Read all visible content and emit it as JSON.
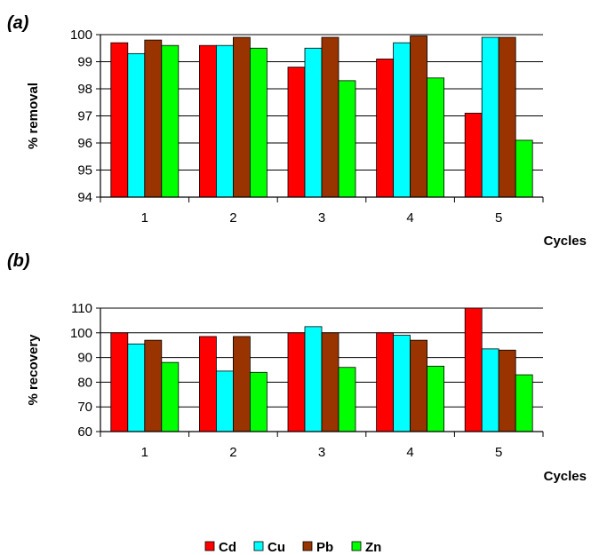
{
  "chart_data": [
    {
      "type": "bar",
      "panel_label": "(a)",
      "title": "",
      "xlabel": "Cycles",
      "ylabel": "% removal",
      "categories": [
        "1",
        "2",
        "3",
        "4",
        "5"
      ],
      "ylim": [
        94,
        100
      ],
      "yticks": [
        "94",
        "95",
        "96",
        "97",
        "98",
        "99",
        "100"
      ],
      "grid": true,
      "series": [
        {
          "name": "Cd",
          "values": [
            99.7,
            99.6,
            98.8,
            99.1,
            97.1
          ]
        },
        {
          "name": "Cu",
          "values": [
            99.3,
            99.6,
            99.5,
            99.7,
            99.9
          ]
        },
        {
          "name": "Pb",
          "values": [
            99.8,
            99.9,
            99.9,
            99.95,
            99.9
          ]
        },
        {
          "name": "Zn",
          "values": [
            99.6,
            99.5,
            98.3,
            98.4,
            96.1
          ]
        }
      ]
    },
    {
      "type": "bar",
      "panel_label": "(b)",
      "title": "",
      "xlabel": "Cycles",
      "ylabel": "% recovery",
      "categories": [
        "1",
        "2",
        "3",
        "4",
        "5"
      ],
      "ylim": [
        60,
        110
      ],
      "yticks": [
        "60",
        "70",
        "80",
        "90",
        "100",
        "110"
      ],
      "grid": true,
      "series": [
        {
          "name": "Cd",
          "values": [
            100,
            98.5,
            100,
            100,
            112
          ]
        },
        {
          "name": "Cu",
          "values": [
            95.5,
            84.5,
            102.5,
            99,
            93.5
          ]
        },
        {
          "name": "Pb",
          "values": [
            97,
            98.5,
            100,
            97,
            93
          ]
        },
        {
          "name": "Zn",
          "values": [
            88,
            84,
            86,
            86.5,
            83
          ]
        }
      ]
    }
  ],
  "legend": {
    "placement": "bottom-center",
    "items": [
      {
        "name": "Cd",
        "color": "#ff0000"
      },
      {
        "name": "Cu",
        "color": "#00ffff"
      },
      {
        "name": "Pb",
        "color": "#993300"
      },
      {
        "name": "Zn",
        "color": "#00ff00"
      }
    ]
  }
}
